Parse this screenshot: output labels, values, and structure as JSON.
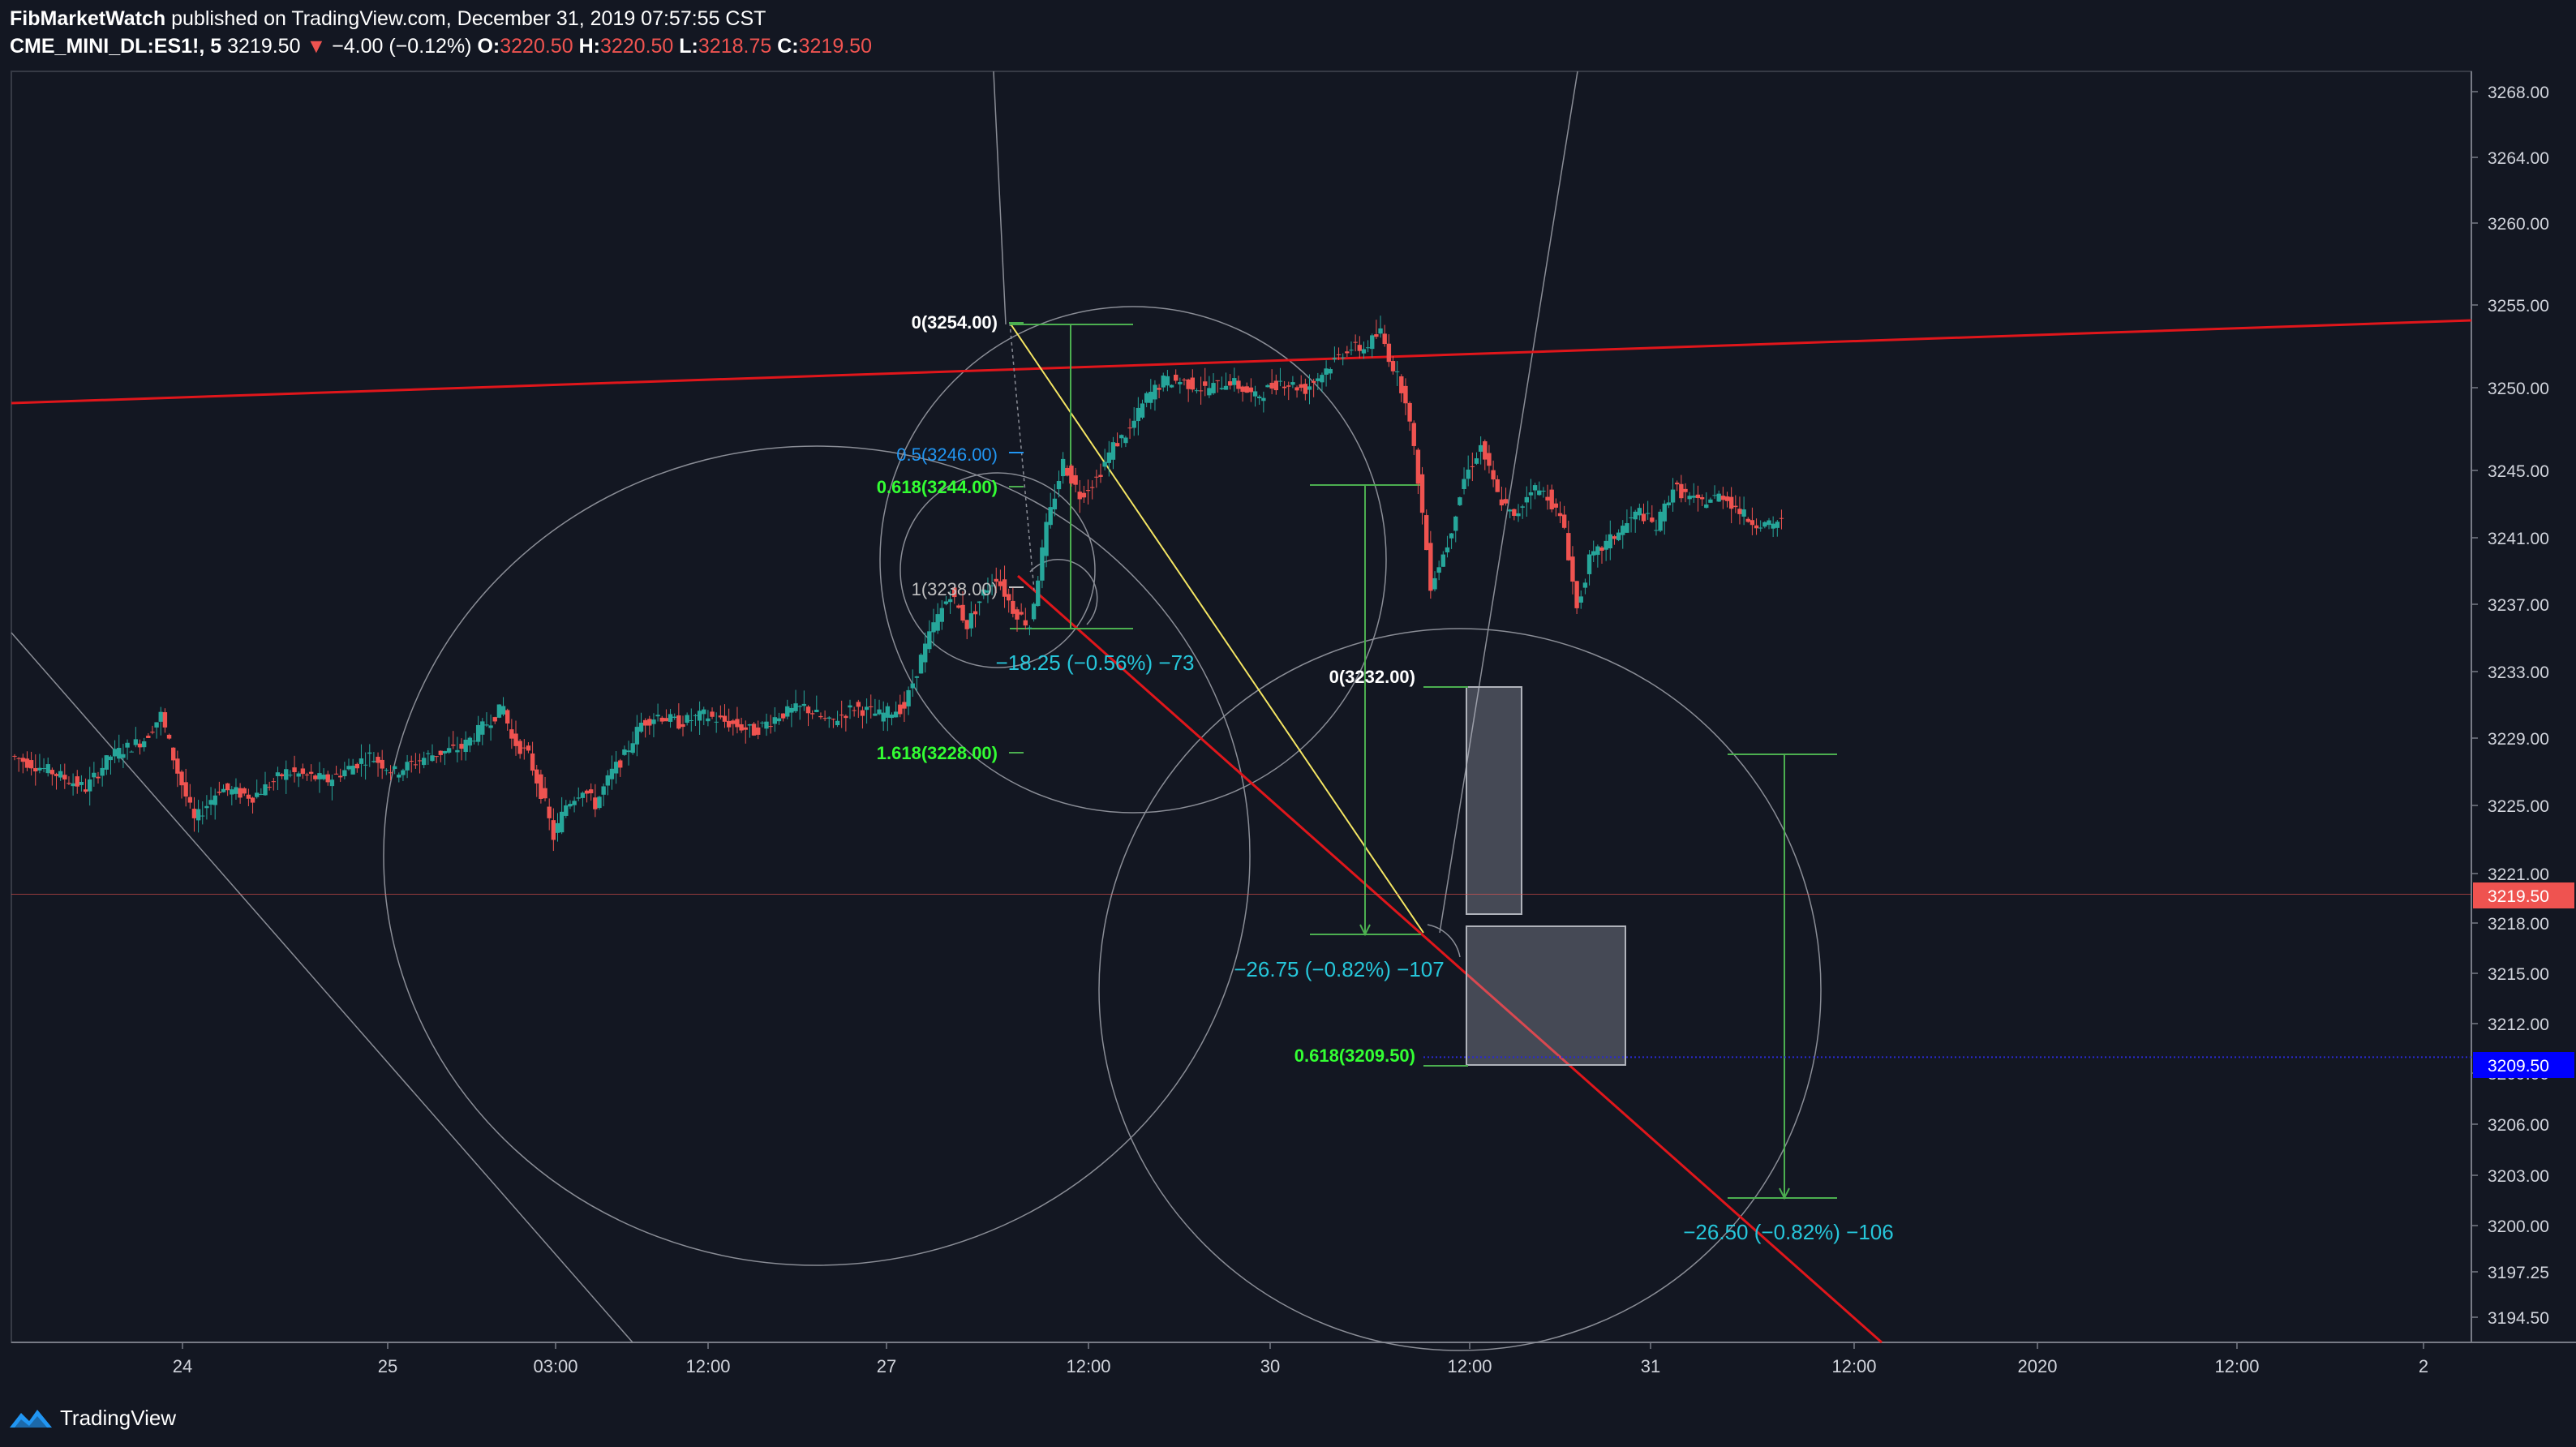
{
  "header": {
    "author": "FibMarketWatch",
    "published_text": "published on TradingView.com, December 31, 2019 07:57:55 CST",
    "symbol": "CME_MINI_DL:ES1!, 5",
    "last": "3219.50",
    "change_arrow": "▼",
    "change": "−4.00 (−0.12%)",
    "o_label": "O:",
    "o_value": "3220.50",
    "h_label": "H:",
    "h_value": "3220.50",
    "l_label": "L:",
    "l_value": "3218.75",
    "c_label": "C:",
    "c_value": "3219.50"
  },
  "footer": {
    "brand": "TradingView",
    "logo_icon": "tradingview-logo-icon"
  },
  "colors": {
    "background": "#131722",
    "up": "#26a69a",
    "down": "#ef5350",
    "trendline": "#e0161b",
    "fib_green": "#4caf50",
    "fib_label_green": "#33ff33",
    "fib_blue": "#2196f3",
    "measure_text": "#26c6da",
    "yellow_line": "#f5e663",
    "price_badge_red": "#ef5350",
    "price_badge_blue": "#0000ff"
  },
  "chart_data": {
    "type": "candlestick",
    "ylim": [
      3192,
      3270
    ],
    "y_ticks": [
      "3268.00",
      "3264.00",
      "3260.00",
      "3255.00",
      "3250.00",
      "3245.00",
      "3241.00",
      "3237.00",
      "3233.00",
      "3229.00",
      "3225.00",
      "3221.00",
      "3218.00",
      "3215.00",
      "3212.00",
      "3209.00",
      "3206.00",
      "3203.00",
      "3200.00",
      "3197.25",
      "3194.50"
    ],
    "x_ticks": [
      "24",
      "25",
      "03:00",
      "12:00",
      "27",
      "12:00",
      "30",
      "12:00",
      "31",
      "12:00",
      "2020",
      "12:00",
      "2"
    ],
    "price_path": [
      [
        0,
        3228
      ],
      [
        10,
        3227
      ],
      [
        18,
        3226
      ],
      [
        24,
        3228
      ],
      [
        32,
        3229
      ],
      [
        36,
        3230.5
      ],
      [
        40,
        3227
      ],
      [
        44,
        3224
      ],
      [
        50,
        3226
      ],
      [
        58,
        3225.5
      ],
      [
        66,
        3227
      ],
      [
        76,
        3226.5
      ],
      [
        86,
        3228
      ],
      [
        92,
        3227
      ],
      [
        100,
        3228
      ],
      [
        108,
        3228.5
      ],
      [
        114,
        3230
      ],
      [
        118,
        3231
      ],
      [
        120,
        3229
      ],
      [
        124,
        3228
      ],
      [
        128,
        3225
      ],
      [
        130,
        3223
      ],
      [
        133,
        3225
      ],
      [
        137,
        3226
      ],
      [
        140,
        3225
      ],
      [
        144,
        3227
      ],
      [
        147,
        3228
      ],
      [
        151,
        3230
      ],
      [
        155,
        3230.5
      ],
      [
        160,
        3230
      ],
      [
        166,
        3230.5
      ],
      [
        172,
        3230
      ],
      [
        178,
        3229.5
      ],
      [
        184,
        3230.5
      ],
      [
        190,
        3231
      ],
      [
        196,
        3230
      ],
      [
        202,
        3231
      ],
      [
        208,
        3230.5
      ],
      [
        214,
        3231
      ],
      [
        218,
        3234
      ],
      [
        221,
        3236
      ],
      [
        225,
        3238
      ],
      [
        229,
        3236
      ],
      [
        233,
        3238
      ],
      [
        236,
        3239
      ],
      [
        240,
        3237
      ],
      [
        244,
        3236
      ],
      [
        248,
        3242
      ],
      [
        252,
        3246
      ],
      [
        256,
        3244
      ],
      [
        260,
        3245
      ],
      [
        264,
        3247
      ],
      [
        268,
        3248
      ],
      [
        272,
        3250
      ],
      [
        276,
        3251
      ],
      [
        280,
        3251
      ],
      [
        286,
        3250.5
      ],
      [
        292,
        3251
      ],
      [
        298,
        3250
      ],
      [
        304,
        3251
      ],
      [
        310,
        3250.5
      ],
      [
        316,
        3252
      ],
      [
        320,
        3253
      ],
      [
        324,
        3253
      ],
      [
        328,
        3254
      ],
      [
        330,
        3252.5
      ],
      [
        334,
        3250
      ],
      [
        337,
        3245
      ],
      [
        340,
        3238.5
      ],
      [
        344,
        3241
      ],
      [
        348,
        3245
      ],
      [
        352,
        3247
      ],
      [
        356,
        3244
      ],
      [
        360,
        3242.5
      ],
      [
        364,
        3244.5
      ],
      [
        368,
        3244
      ],
      [
        372,
        3242
      ],
      [
        375,
        3237
      ],
      [
        378,
        3240
      ],
      [
        382,
        3241
      ],
      [
        386,
        3242
      ],
      [
        390,
        3243
      ],
      [
        394,
        3242
      ],
      [
        398,
        3244.5
      ],
      [
        404,
        3243.5
      ],
      [
        410,
        3244
      ],
      [
        416,
        3242.5
      ],
      [
        422,
        3242
      ],
      [
        428,
        3244
      ],
      [
        432,
        3245
      ],
      [
        436,
        3243
      ],
      [
        440,
        3241
      ],
      [
        444,
        3240
      ],
      [
        448,
        3238
      ],
      [
        452,
        3242
      ],
      [
        456,
        3243
      ],
      [
        460,
        3244.5
      ],
      [
        463,
        3242
      ],
      [
        465,
        3237
      ],
      [
        467,
        3230
      ],
      [
        469,
        3226
      ],
      [
        472,
        3222
      ],
      [
        474,
        3219
      ],
      [
        476,
        3222
      ],
      [
        478,
        3225
      ],
      [
        480,
        3228
      ],
      [
        482,
        3229
      ],
      [
        484,
        3231
      ],
      [
        486,
        3232
      ],
      [
        488,
        3231
      ],
      [
        490,
        3229
      ],
      [
        492,
        3227
      ],
      [
        494,
        3226
      ],
      [
        496,
        3224
      ],
      [
        498,
        3221
      ],
      [
        500,
        3223
      ],
      [
        502,
        3225
      ],
      [
        506,
        3225.5
      ],
      [
        510,
        3226
      ],
      [
        514,
        3227
      ],
      [
        518,
        3228
      ],
      [
        522,
        3228.5
      ],
      [
        528,
        3228
      ],
      [
        534,
        3228
      ],
      [
        540,
        3228
      ],
      [
        546,
        3227.5
      ],
      [
        550,
        3226
      ],
      [
        553,
        3224
      ],
      [
        556,
        3225
      ],
      [
        560,
        3226
      ],
      [
        564,
        3227
      ],
      [
        568,
        3228
      ],
      [
        572,
        3228.5
      ],
      [
        575,
        3226
      ],
      [
        578,
        3224
      ],
      [
        580,
        3222
      ],
      [
        583,
        3221
      ],
      [
        586,
        3219.5
      ]
    ],
    "price_path_x_unit": "5-minute bars from first visible bar",
    "last_price": 3219.5,
    "price_badges": [
      {
        "value": "3219.50",
        "color": "#ef5350"
      },
      {
        "value": "3209.50",
        "color": "#0000ff"
      }
    ],
    "fib_levels_1": [
      {
        "label": "0(3254.00)",
        "color": "#ffffff"
      },
      {
        "label": "0.5(3246.00)",
        "color": "#2196f3"
      },
      {
        "label": "0.618(3244.00)",
        "color": "#33ff33"
      },
      {
        "label": "1(3238.00)",
        "color": "#c0c0c0"
      },
      {
        "label": "1.618(3228.00)",
        "color": "#33ff33"
      }
    ],
    "fib_levels_2": [
      {
        "label": "0(3232.00)",
        "color": "#ffffff"
      },
      {
        "label": "0.618(3209.50)",
        "color": "#33ff33"
      }
    ],
    "measurements": [
      {
        "label": "−18.25 (−0.56%) −73"
      },
      {
        "label": "−26.75 (−0.82%) −107"
      },
      {
        "label": "−26.50 (−0.82%) −106"
      }
    ],
    "trendlines": [
      {
        "name": "resistance",
        "from": [
          0,
          3249
        ],
        "to": [
          1506,
          3255
        ]
      },
      {
        "name": "support",
        "from": [
          615,
          3254
        ],
        "to": [
          1145,
          3194
        ]
      },
      {
        "name": "yellow",
        "from": [
          615,
          3254
        ],
        "to": [
          866,
          3218
        ]
      }
    ]
  }
}
